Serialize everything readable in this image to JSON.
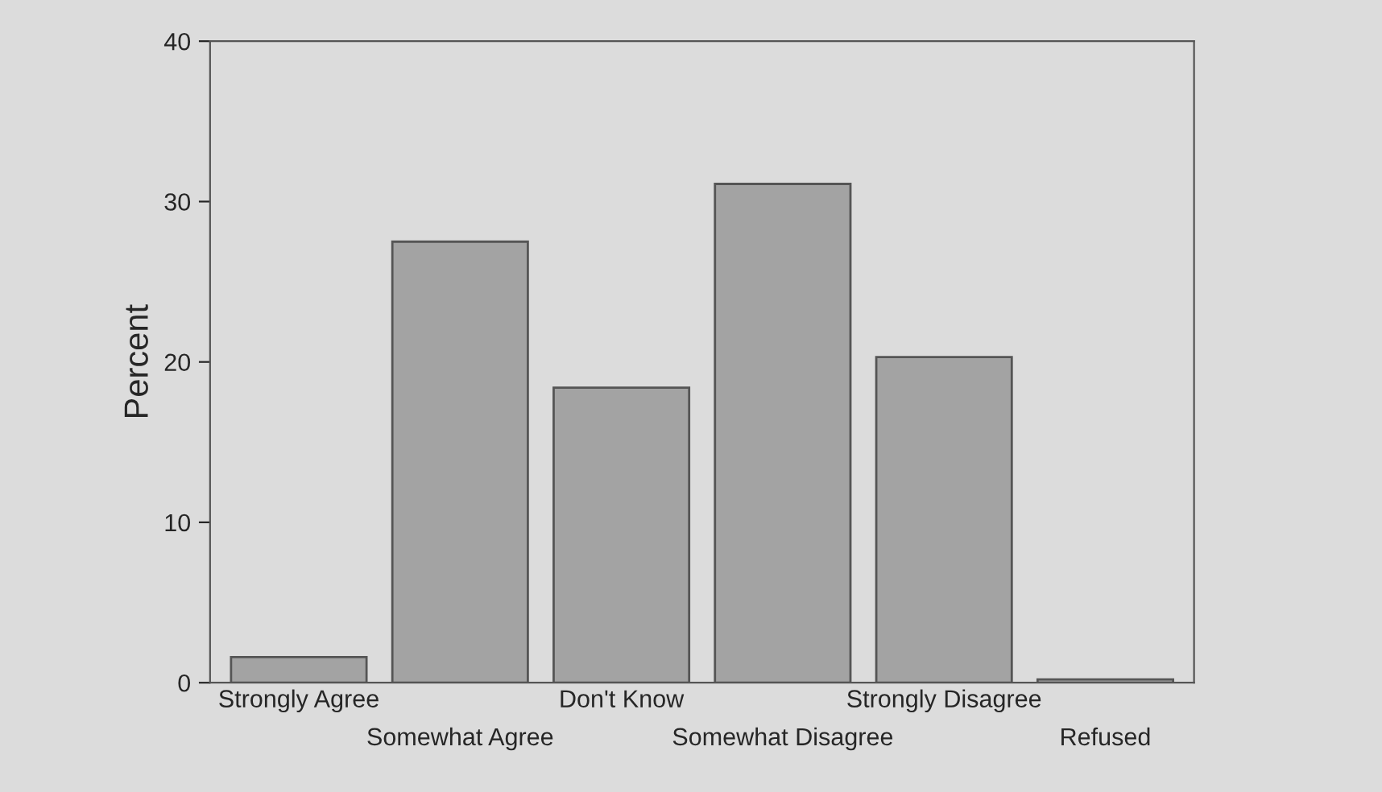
{
  "chart_data": {
    "type": "bar",
    "ylabel": "Percent",
    "categories": [
      "Strongly Agree",
      "Somewhat Agree",
      "Don't Know",
      "Somewhat Disagree",
      "Strongly Disagree",
      "Refused"
    ],
    "values": [
      1.6,
      27.5,
      18.4,
      31.1,
      20.3,
      0.2
    ],
    "color": "#a3a3a3",
    "ylim": [
      0,
      40
    ],
    "yticks": [
      0,
      10,
      20,
      30,
      40
    ],
    "grid": false
  }
}
